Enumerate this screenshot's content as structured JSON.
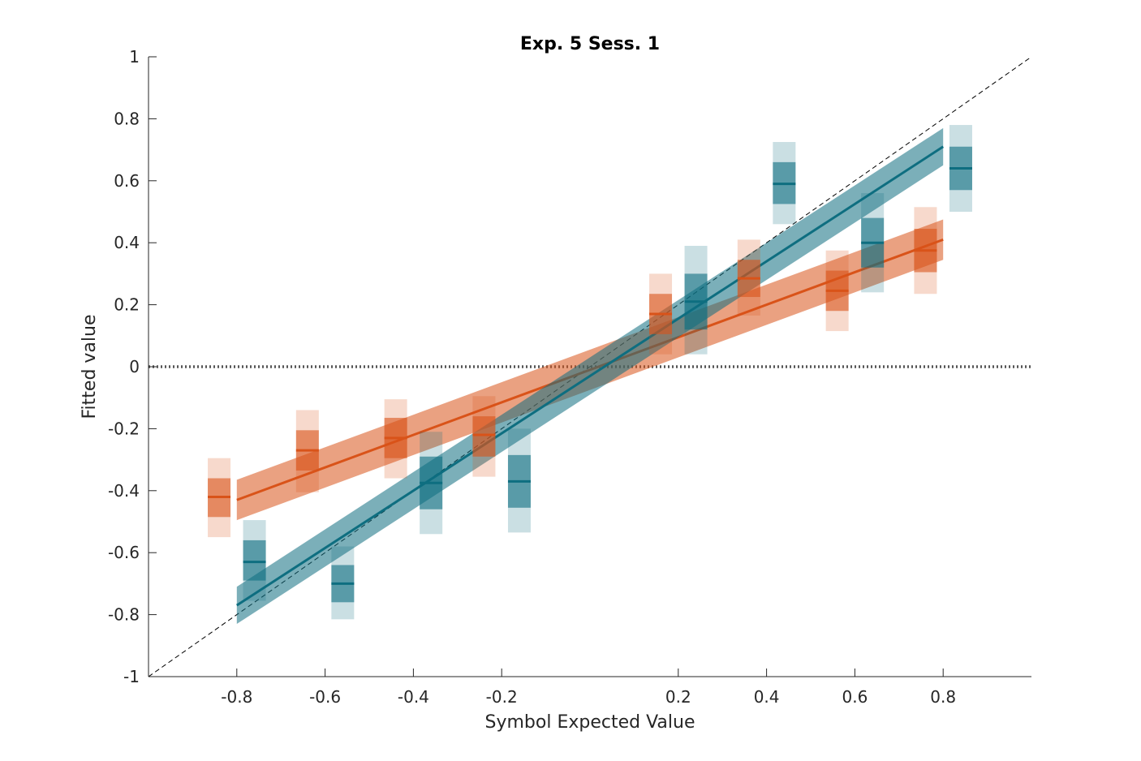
{
  "chart_data": {
    "type": "scatter",
    "title": "Exp. 5 Sess. 1",
    "xlabel": "Symbol Expected Value",
    "ylabel": "Fitted value",
    "xlim": [
      -1,
      1
    ],
    "ylim": [
      -1,
      1
    ],
    "xticks": [
      {
        "value": -0.8,
        "label": "-0.8"
      },
      {
        "value": -0.6,
        "label": "-0.6"
      },
      {
        "value": -0.4,
        "label": "-0.4"
      },
      {
        "value": -0.2,
        "label": "-0.2"
      },
      {
        "value": 0.2,
        "label": "0.2"
      },
      {
        "value": 0.4,
        "label": "0.4"
      },
      {
        "value": 0.6,
        "label": "0.6"
      },
      {
        "value": 0.8,
        "label": "0.8"
      }
    ],
    "yticks": [
      {
        "value": 1,
        "label": "1"
      },
      {
        "value": 0.8,
        "label": "0.8"
      },
      {
        "value": 0.6,
        "label": "0.6"
      },
      {
        "value": 0.4,
        "label": "0.4"
      },
      {
        "value": 0.2,
        "label": "0.2"
      },
      {
        "value": 0,
        "label": "0"
      },
      {
        "value": -0.2,
        "label": "-0.2"
      },
      {
        "value": -0.4,
        "label": "-0.4"
      },
      {
        "value": -0.6,
        "label": "-0.6"
      },
      {
        "value": -0.8,
        "label": "-0.8"
      },
      {
        "value": -1,
        "label": "-1"
      }
    ],
    "grid": false,
    "reference_lines": {
      "identity_dashed": true,
      "zero_dotted": true
    },
    "series": [
      {
        "color": "#D95319",
        "points": [
          {
            "x": -0.84,
            "mean": -0.42,
            "inner": [
              -0.485,
              -0.36
            ],
            "outer": [
              -0.55,
              -0.295
            ]
          },
          {
            "x": -0.64,
            "mean": -0.27,
            "inner": [
              -0.335,
              -0.205
            ],
            "outer": [
              -0.405,
              -0.14
            ]
          },
          {
            "x": -0.44,
            "mean": -0.23,
            "inner": [
              -0.295,
              -0.165
            ],
            "outer": [
              -0.36,
              -0.105
            ]
          },
          {
            "x": -0.24,
            "mean": -0.22,
            "inner": [
              -0.29,
              -0.16
            ],
            "outer": [
              -0.355,
              -0.095
            ]
          },
          {
            "x": 0.16,
            "mean": 0.17,
            "inner": [
              0.105,
              0.235
            ],
            "outer": [
              0.04,
              0.3
            ]
          },
          {
            "x": 0.36,
            "mean": 0.285,
            "inner": [
              0.225,
              0.345
            ],
            "outer": [
              0.165,
              0.41
            ]
          },
          {
            "x": 0.56,
            "mean": 0.245,
            "inner": [
              0.18,
              0.31
            ],
            "outer": [
              0.115,
              0.375
            ]
          },
          {
            "x": 0.76,
            "mean": 0.375,
            "inner": [
              0.305,
              0.445
            ],
            "outer": [
              0.235,
              0.515
            ]
          }
        ],
        "fit": {
          "x": [
            -0.8,
            0.8
          ],
          "y": [
            -0.43,
            0.41
          ],
          "band": 0.065
        }
      },
      {
        "color": "#0E6E80",
        "points": [
          {
            "x": -0.76,
            "mean": -0.63,
            "inner": [
              -0.69,
              -0.56
            ],
            "outer": [
              -0.755,
              -0.495
            ]
          },
          {
            "x": -0.56,
            "mean": -0.7,
            "inner": [
              -0.76,
              -0.64
            ],
            "outer": [
              -0.815,
              -0.58
            ]
          },
          {
            "x": -0.36,
            "mean": -0.375,
            "inner": [
              -0.46,
              -0.29
            ],
            "outer": [
              -0.54,
              -0.21
            ]
          },
          {
            "x": -0.16,
            "mean": -0.37,
            "inner": [
              -0.455,
              -0.285
            ],
            "outer": [
              -0.535,
              -0.2
            ]
          },
          {
            "x": 0.24,
            "mean": 0.21,
            "inner": [
              0.12,
              0.3
            ],
            "outer": [
              0.04,
              0.39
            ]
          },
          {
            "x": 0.44,
            "mean": 0.59,
            "inner": [
              0.525,
              0.66
            ],
            "outer": [
              0.46,
              0.725
            ]
          },
          {
            "x": 0.64,
            "mean": 0.4,
            "inner": [
              0.32,
              0.48
            ],
            "outer": [
              0.24,
              0.56
            ]
          },
          {
            "x": 0.84,
            "mean": 0.64,
            "inner": [
              0.57,
              0.71
            ],
            "outer": [
              0.5,
              0.78
            ]
          }
        ],
        "fit": {
          "x": [
            -0.8,
            0.8
          ],
          "y": [
            -0.77,
            0.71
          ],
          "band": 0.06
        }
      }
    ]
  }
}
